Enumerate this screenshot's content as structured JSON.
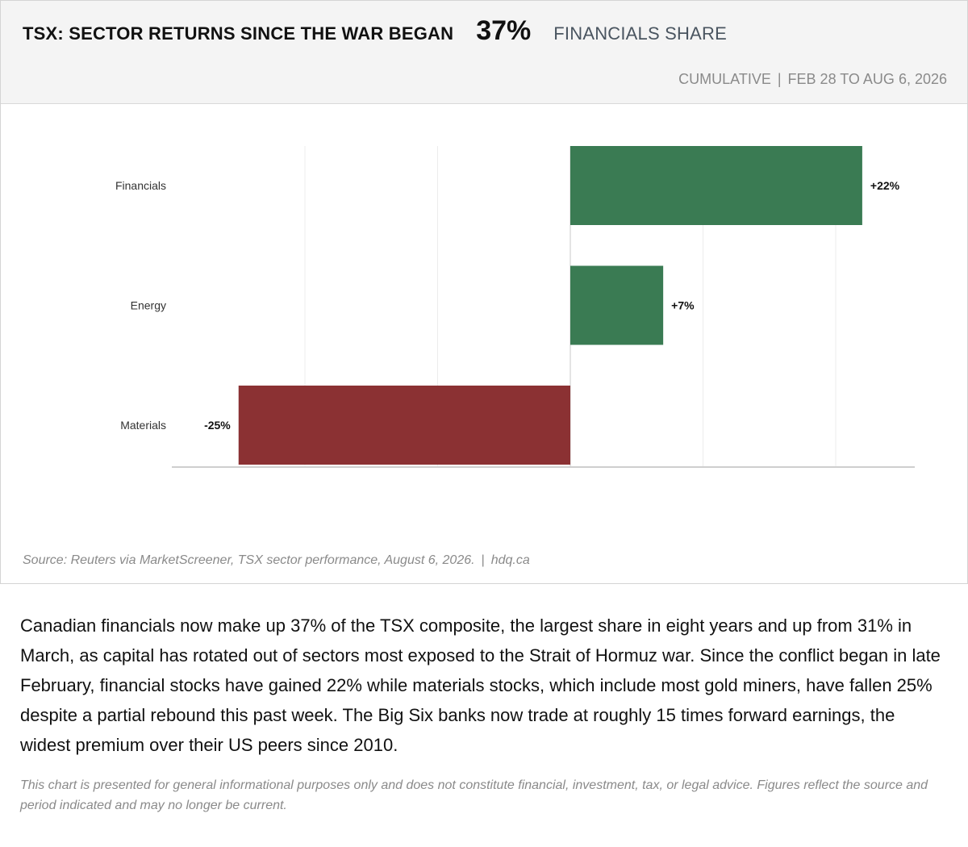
{
  "header": {
    "title": "TSX: SECTOR RETURNS SINCE THE WAR BEGAN",
    "stat_value": "37%",
    "stat_label": "FINANCIALS SHARE",
    "subhead_left": "CUMULATIVE",
    "subhead_sep": "|",
    "subhead_right": "FEB 28 TO AUG 6, 2026"
  },
  "chart_data": {
    "type": "bar",
    "orientation": "horizontal",
    "categories": [
      "Financials",
      "Energy",
      "Materials"
    ],
    "values": [
      22,
      7,
      -25
    ],
    "data_labels": [
      "+22%",
      "+7%",
      "-25%"
    ],
    "xlim": [
      -30,
      26
    ],
    "unit": "%",
    "grid": true,
    "colors": {
      "positive": "#3a7b53",
      "negative": "#8b3133"
    }
  },
  "source": {
    "text": "Source: Reuters via MarketScreener, TSX sector performance, August 6, 2026.",
    "sep": "|",
    "site": "hdq.ca"
  },
  "body": {
    "paragraph": "Canadian financials now make up 37% of the TSX composite, the largest share in eight years and up from 31% in March, as capital has rotated out of sectors most exposed to the Strait of Hormuz war. Since the conflict began in late February, financial stocks have gained 22% while materials stocks, which include most gold miners, have fallen 25% despite a partial rebound this past week. The Big Six banks now trade at roughly 15 times forward earnings, the widest premium over their US peers since 2010.",
    "disclaimer": "This chart is presented for general informational purposes only and does not constitute financial, investment, tax, or legal advice. Figures reflect the source and period indicated and may no longer be current."
  }
}
